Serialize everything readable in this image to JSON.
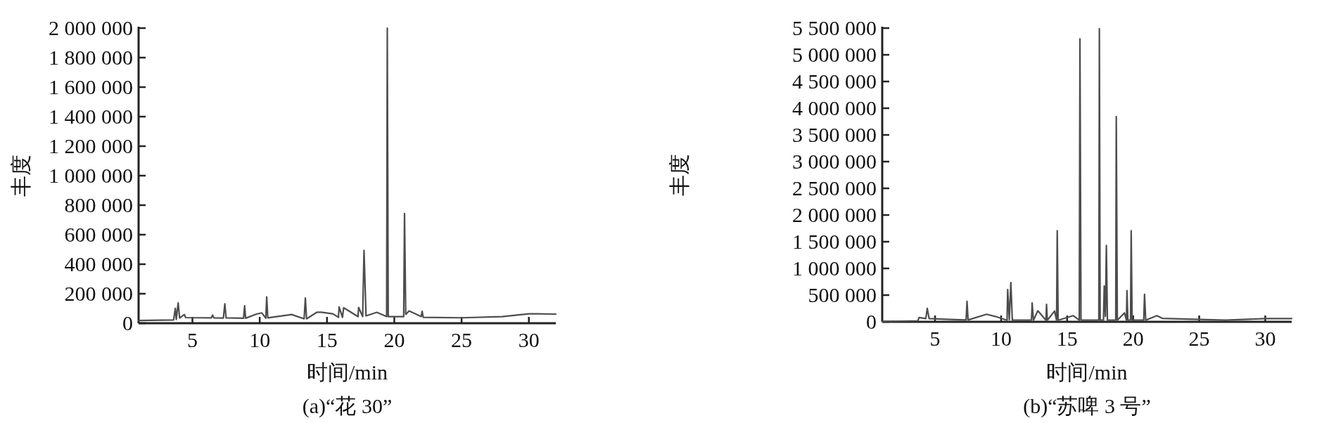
{
  "chart_data": [
    {
      "type": "line",
      "title": "(a)“花 30”",
      "xlabel": "时间/min",
      "ylabel": "丰度",
      "color": "#4d4d4d",
      "xlim": [
        1,
        32
      ],
      "ylim": [
        0,
        2000000
      ],
      "xticks": [
        5,
        10,
        15,
        20,
        25,
        30
      ],
      "yticks": [
        0,
        {
          "value": 200000,
          "label": "200 000"
        },
        {
          "value": 400000,
          "label": "400 000"
        },
        {
          "value": 600000,
          "label": "600 000"
        },
        {
          "value": 800000,
          "label": "800 000"
        },
        {
          "value": 1000000,
          "label": "1 000 000"
        },
        {
          "value": 1200000,
          "label": "1 200 000"
        },
        {
          "value": 1400000,
          "label": "1 400 000"
        },
        {
          "value": 1600000,
          "label": "1 600 000"
        },
        {
          "value": 1800000,
          "label": "1 800 000"
        },
        {
          "value": 2000000,
          "label": "2 000 000"
        }
      ],
      "x": [
        1,
        3.6,
        3.73,
        3.8,
        3.94,
        4.05,
        4.4,
        4.5,
        6.4,
        6.5,
        6.6,
        7.3,
        7.41,
        7.5,
        8.8,
        8.88,
        8.95,
        9.76,
        10.16,
        10.45,
        10.52,
        10.6,
        12.37,
        13.3,
        13.39,
        13.48,
        14.24,
        14.58,
        15.44,
        15.85,
        15.9,
        16.15,
        16.24,
        17.3,
        17.35,
        17.65,
        17.75,
        17.9,
        18.7,
        19.43,
        19.48,
        19.55,
        20.7,
        20.76,
        20.85,
        21.1,
        22.0,
        22.07,
        22.15,
        25,
        28,
        30,
        32
      ],
      "values": [
        18000,
        22000,
        101000,
        25000,
        138000,
        35000,
        59000,
        38000,
        36000,
        55000,
        36000,
        35000,
        132000,
        36000,
        34000,
        118000,
        34000,
        62000,
        70000,
        34000,
        178000,
        36000,
        59000,
        30000,
        171000,
        30000,
        74000,
        74000,
        64000,
        40000,
        110000,
        40000,
        105000,
        45000,
        107000,
        45000,
        493000,
        50000,
        74000,
        45000,
        2000000,
        45000,
        45000,
        744000,
        60000,
        83000,
        45000,
        81000,
        40000,
        37000,
        45000,
        64000,
        62000
      ]
    },
    {
      "type": "line",
      "title": "(b)“苏啤 3 号”",
      "xlabel": "时间/min",
      "ylabel": "丰度",
      "color": "#4d4d4d",
      "xlim": [
        1,
        32
      ],
      "ylim": [
        0,
        5500000
      ],
      "xticks": [
        5,
        10,
        15,
        20,
        25,
        30
      ],
      "yticks": [
        0,
        {
          "value": 500000,
          "label": "500 000"
        },
        {
          "value": 1000000,
          "label": "1 000 000"
        },
        {
          "value": 1500000,
          "label": "1 500 000"
        },
        {
          "value": 2000000,
          "label": "2 000 000"
        },
        {
          "value": 2500000,
          "label": "2 500 000"
        },
        {
          "value": 3000000,
          "label": "3 000 000"
        },
        {
          "value": 3500000,
          "label": "3 500 000"
        },
        {
          "value": 4000000,
          "label": "4 000 000"
        },
        {
          "value": 4500000,
          "label": "4 500 000"
        },
        {
          "value": 5000000,
          "label": "5 000 000"
        },
        {
          "value": 5500000,
          "label": "5 500 000"
        }
      ],
      "x": [
        1,
        3.7,
        3.79,
        4.3,
        4.41,
        4.55,
        6.5,
        7.35,
        7.42,
        7.5,
        8.9,
        9.55,
        10.45,
        10.5,
        10.62,
        10.74,
        10.85,
        12.3,
        12.35,
        12.45,
        12.78,
        13.4,
        13.44,
        13.5,
        14.05,
        14.2,
        14.25,
        14.32,
        15.46,
        15.92,
        15.97,
        16.05,
        17.4,
        17.44,
        17.5,
        17.75,
        17.81,
        17.9,
        17.97,
        18.05,
        18.68,
        18.72,
        18.8,
        19.34,
        19.49,
        19.53,
        19.6,
        19.8,
        19.85,
        19.92,
        20.8,
        20.86,
        20.95,
        21.79,
        22.2,
        27,
        30,
        32
      ],
      "values": [
        5000,
        20000,
        81000,
        60000,
        252000,
        60000,
        40000,
        35000,
        383000,
        35000,
        141000,
        101000,
        30000,
        605000,
        40000,
        737000,
        30000,
        30000,
        353000,
        30000,
        207000,
        30000,
        328000,
        30000,
        202000,
        30000,
        1705000,
        30000,
        116000,
        30000,
        5298000,
        30000,
        30000,
        5490000,
        30000,
        30000,
        671000,
        100000,
        1428000,
        30000,
        30000,
        3845000,
        30000,
        166000,
        30000,
        585000,
        30000,
        30000,
        1705000,
        30000,
        30000,
        515000,
        30000,
        116000,
        65000,
        30000,
        60000,
        60000
      ]
    }
  ]
}
